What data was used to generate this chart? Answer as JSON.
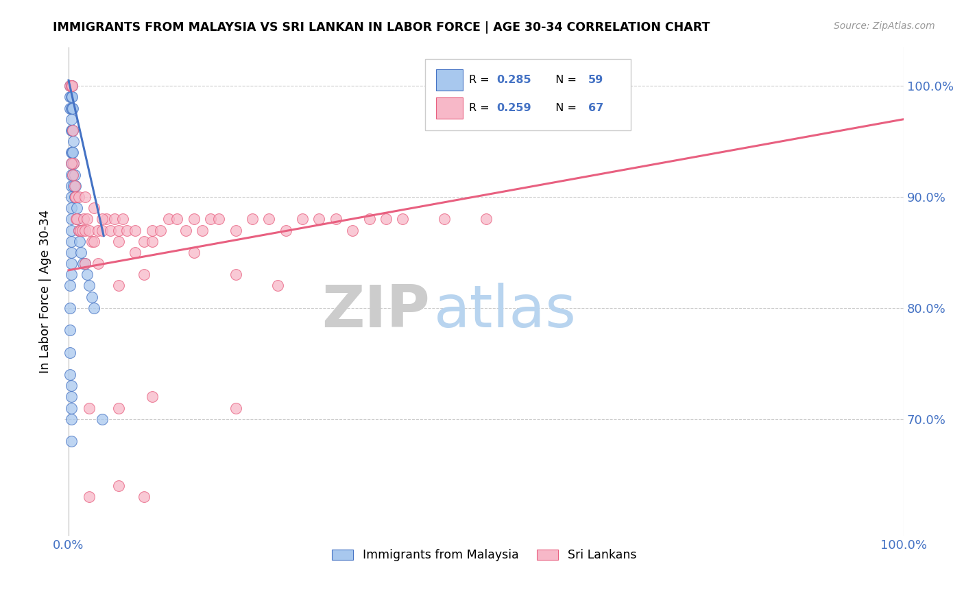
{
  "title": "IMMIGRANTS FROM MALAYSIA VS SRI LANKAN IN LABOR FORCE | AGE 30-34 CORRELATION CHART",
  "source": "Source: ZipAtlas.com",
  "ylabel": "In Labor Force | Age 30-34",
  "color_malaysia": "#a8c8ee",
  "color_srilanka": "#f7b8c8",
  "line_color_malaysia": "#4472c4",
  "line_color_srilanka": "#e86080",
  "xlim": [
    -0.005,
    1.0
  ],
  "ylim": [
    0.595,
    1.035
  ],
  "yticks": [
    0.7,
    0.8,
    0.9,
    1.0
  ],
  "ytick_labels": [
    "70.0%",
    "80.0%",
    "90.0%",
    "100.0%"
  ],
  "malaysia_x": [
    0.002,
    0.002,
    0.002,
    0.003,
    0.003,
    0.003,
    0.003,
    0.003,
    0.003,
    0.003,
    0.003,
    0.003,
    0.003,
    0.003,
    0.003,
    0.003,
    0.003,
    0.003,
    0.003,
    0.003,
    0.004,
    0.004,
    0.004,
    0.004,
    0.004,
    0.004,
    0.005,
    0.005,
    0.005,
    0.005,
    0.006,
    0.006,
    0.006,
    0.007,
    0.007,
    0.008,
    0.009,
    0.01,
    0.011,
    0.012,
    0.013,
    0.015,
    0.017,
    0.02,
    0.022,
    0.025,
    0.028,
    0.03,
    0.002,
    0.002,
    0.002,
    0.002,
    0.002,
    0.003,
    0.003,
    0.003,
    0.003,
    0.003,
    0.04
  ],
  "malaysia_y": [
    1.0,
    0.99,
    0.98,
    1.0,
    0.99,
    0.98,
    0.97,
    0.96,
    0.94,
    0.93,
    0.92,
    0.91,
    0.9,
    0.89,
    0.88,
    0.87,
    0.86,
    0.85,
    0.84,
    0.83,
    1.0,
    0.99,
    0.98,
    0.96,
    0.94,
    0.93,
    0.98,
    0.96,
    0.94,
    0.92,
    0.95,
    0.93,
    0.91,
    0.92,
    0.9,
    0.91,
    0.9,
    0.89,
    0.88,
    0.87,
    0.86,
    0.85,
    0.84,
    0.84,
    0.83,
    0.82,
    0.81,
    0.8,
    0.82,
    0.8,
    0.78,
    0.76,
    0.74,
    0.73,
    0.72,
    0.71,
    0.7,
    0.68,
    0.7
  ],
  "srilanka_x": [
    0.002,
    0.003,
    0.004,
    0.005,
    0.006,
    0.007,
    0.008,
    0.009,
    0.01,
    0.012,
    0.014,
    0.016,
    0.018,
    0.02,
    0.022,
    0.025,
    0.028,
    0.03,
    0.035,
    0.04,
    0.045,
    0.05,
    0.055,
    0.06,
    0.065,
    0.07,
    0.08,
    0.09,
    0.1,
    0.11,
    0.12,
    0.13,
    0.14,
    0.15,
    0.16,
    0.17,
    0.18,
    0.2,
    0.22,
    0.24,
    0.26,
    0.28,
    0.3,
    0.32,
    0.34,
    0.36,
    0.38,
    0.4,
    0.45,
    0.5,
    0.003,
    0.005,
    0.008,
    0.012,
    0.02,
    0.03,
    0.04,
    0.06,
    0.08,
    0.1,
    0.15,
    0.2,
    0.25,
    0.02,
    0.035,
    0.06,
    0.09
  ],
  "srilanka_y": [
    1.0,
    1.0,
    1.0,
    0.96,
    0.93,
    0.91,
    0.9,
    0.88,
    0.88,
    0.87,
    0.87,
    0.87,
    0.88,
    0.87,
    0.88,
    0.87,
    0.86,
    0.86,
    0.87,
    0.87,
    0.88,
    0.87,
    0.88,
    0.87,
    0.88,
    0.87,
    0.87,
    0.86,
    0.87,
    0.87,
    0.88,
    0.88,
    0.87,
    0.88,
    0.87,
    0.88,
    0.88,
    0.87,
    0.88,
    0.88,
    0.87,
    0.88,
    0.88,
    0.88,
    0.87,
    0.88,
    0.88,
    0.88,
    0.88,
    0.88,
    0.93,
    0.92,
    0.9,
    0.9,
    0.9,
    0.89,
    0.88,
    0.86,
    0.85,
    0.86,
    0.85,
    0.83,
    0.82,
    0.84,
    0.84,
    0.82,
    0.83
  ],
  "srilanka_outliers_x": [
    0.025,
    0.06,
    0.1,
    0.2,
    0.025,
    0.06,
    0.09
  ],
  "srilanka_outliers_y": [
    0.71,
    0.71,
    0.72,
    0.71,
    0.63,
    0.64,
    0.63
  ],
  "srilanka_line_x0": 0.0,
  "srilanka_line_x1": 1.0,
  "srilanka_line_y0": 0.834,
  "srilanka_line_y1": 0.97,
  "malaysia_line_x0": 0.0,
  "malaysia_line_x1": 0.042,
  "malaysia_line_y0": 1.005,
  "malaysia_line_y1": 0.865
}
